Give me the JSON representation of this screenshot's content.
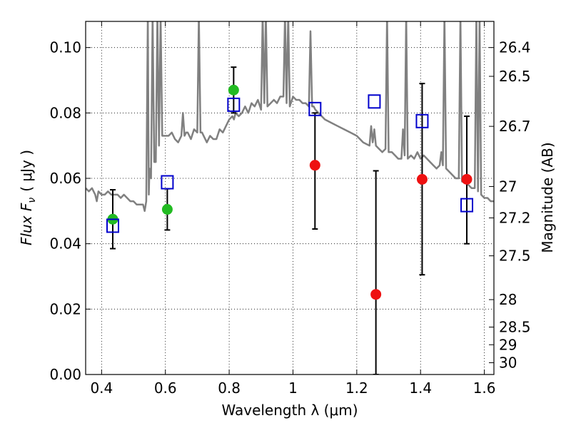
{
  "chart_data": {
    "type": "scatter",
    "xlabel": "Wavelength  λ (μm)",
    "ylabel": "Flux  F",
    "ylabel_sub": "ν",
    "ylabel_unit": "( μJy )",
    "right_ylabel": "Magnitude (AB)",
    "xlim": [
      0.35,
      1.63
    ],
    "ylim": [
      0.0,
      0.108
    ],
    "grid": true,
    "x_ticks": [
      0.4,
      0.6,
      0.8,
      1.0,
      1.2,
      1.4,
      1.6
    ],
    "x_tick_labels": [
      "0.4",
      "0.6",
      "0.8",
      "1",
      "1.2",
      "1.4",
      "1.6"
    ],
    "y_ticks": [
      0.0,
      0.02,
      0.04,
      0.06,
      0.08,
      0.1
    ],
    "y_tick_labels": [
      "0.00",
      "0.02",
      "0.04",
      "0.06",
      "0.08",
      "0.10"
    ],
    "right_ticks": [
      {
        "label": "26.4",
        "flux": 0.1
      },
      {
        "label": "26.5",
        "flux": 0.0912
      },
      {
        "label": "26.7",
        "flux": 0.0759
      },
      {
        "label": "27",
        "flux": 0.0575
      },
      {
        "label": "27.2",
        "flux": 0.0479
      },
      {
        "label": "27.5",
        "flux": 0.0363
      },
      {
        "label": "28",
        "flux": 0.0229
      },
      {
        "label": "28.5",
        "flux": 0.0145
      },
      {
        "label": "29",
        "flux": 0.0091
      },
      {
        "label": "30",
        "flux": 0.0036
      }
    ],
    "colors": {
      "spectrum": "#808080",
      "green": "#22bb22",
      "red": "#ee1111",
      "model": "#0000cc",
      "errorbar": "#000000"
    },
    "detections": [
      {
        "x": 0.435,
        "y": 0.0475,
        "yerr_low": 0.0385,
        "yerr_high": 0.0565,
        "color": "green"
      },
      {
        "x": 0.606,
        "y": 0.0505,
        "yerr_low": 0.0442,
        "yerr_high": 0.0568,
        "color": "green"
      },
      {
        "x": 0.814,
        "y": 0.087,
        "yerr_low": 0.08,
        "yerr_high": 0.094,
        "color": "green"
      },
      {
        "x": 1.069,
        "y": 0.064,
        "yerr_low": 0.0445,
        "yerr_high": 0.08,
        "color": "red"
      },
      {
        "x": 1.26,
        "y": 0.0245,
        "yerr_low": 0.0,
        "yerr_high": 0.0623,
        "color": "red"
      },
      {
        "x": 1.405,
        "y": 0.0597,
        "yerr_low": 0.0305,
        "yerr_high": 0.089,
        "color": "red"
      },
      {
        "x": 1.545,
        "y": 0.0597,
        "yerr_low": 0.04,
        "yerr_high": 0.079,
        "color": "red"
      }
    ],
    "model_photometry": [
      {
        "x": 0.435,
        "y": 0.0455
      },
      {
        "x": 0.606,
        "y": 0.0588
      },
      {
        "x": 0.814,
        "y": 0.0825
      },
      {
        "x": 1.069,
        "y": 0.0812
      },
      {
        "x": 1.255,
        "y": 0.0835
      },
      {
        "x": 1.405,
        "y": 0.0775
      },
      {
        "x": 1.545,
        "y": 0.0518
      }
    ],
    "spectrum": {
      "x": [
        0.35,
        0.36,
        0.37,
        0.38,
        0.385,
        0.39,
        0.4,
        0.41,
        0.42,
        0.43,
        0.44,
        0.45,
        0.46,
        0.47,
        0.48,
        0.49,
        0.5,
        0.51,
        0.52,
        0.53,
        0.535,
        0.54,
        0.545,
        0.548,
        0.55,
        0.555,
        0.56,
        0.565,
        0.57,
        0.575,
        0.58,
        0.585,
        0.59,
        0.6,
        0.61,
        0.62,
        0.63,
        0.64,
        0.65,
        0.655,
        0.66,
        0.665,
        0.67,
        0.68,
        0.69,
        0.7,
        0.705,
        0.71,
        0.715,
        0.72,
        0.73,
        0.74,
        0.75,
        0.76,
        0.77,
        0.78,
        0.79,
        0.8,
        0.81,
        0.815,
        0.82,
        0.83,
        0.84,
        0.85,
        0.86,
        0.87,
        0.88,
        0.89,
        0.9,
        0.905,
        0.91,
        0.915,
        0.92,
        0.93,
        0.94,
        0.95,
        0.96,
        0.97,
        0.975,
        0.98,
        0.985,
        0.99,
        1.0,
        1.01,
        1.02,
        1.03,
        1.04,
        1.05,
        1.055,
        1.06,
        1.065,
        1.07,
        1.08,
        1.09,
        1.1,
        1.12,
        1.14,
        1.16,
        1.18,
        1.2,
        1.22,
        1.24,
        1.245,
        1.25,
        1.255,
        1.26,
        1.27,
        1.28,
        1.29,
        1.295,
        1.3,
        1.31,
        1.32,
        1.33,
        1.34,
        1.345,
        1.35,
        1.355,
        1.36,
        1.37,
        1.38,
        1.39,
        1.4,
        1.41,
        1.42,
        1.43,
        1.44,
        1.45,
        1.46,
        1.465,
        1.47,
        1.475,
        1.48,
        1.49,
        1.5,
        1.51,
        1.52,
        1.525,
        1.53,
        1.54,
        1.55,
        1.56,
        1.57,
        1.575,
        1.58,
        1.585,
        1.59,
        1.6,
        1.61,
        1.62,
        1.63
      ],
      "y": [
        0.057,
        0.056,
        0.057,
        0.055,
        0.053,
        0.056,
        0.055,
        0.055,
        0.056,
        0.055,
        0.055,
        0.055,
        0.054,
        0.055,
        0.054,
        0.053,
        0.053,
        0.052,
        0.052,
        0.052,
        0.05,
        0.053,
        0.11,
        0.055,
        0.063,
        0.06,
        0.11,
        0.065,
        0.065,
        0.11,
        0.07,
        0.11,
        0.073,
        0.073,
        0.073,
        0.074,
        0.072,
        0.071,
        0.073,
        0.08,
        0.073,
        0.074,
        0.074,
        0.072,
        0.075,
        0.074,
        0.11,
        0.074,
        0.074,
        0.073,
        0.071,
        0.073,
        0.072,
        0.072,
        0.075,
        0.074,
        0.076,
        0.078,
        0.079,
        0.078,
        0.08,
        0.079,
        0.08,
        0.082,
        0.08,
        0.083,
        0.082,
        0.084,
        0.081,
        0.11,
        0.083,
        0.11,
        0.082,
        0.083,
        0.084,
        0.083,
        0.085,
        0.085,
        0.11,
        0.083,
        0.11,
        0.082,
        0.085,
        0.084,
        0.084,
        0.083,
        0.083,
        0.082,
        0.105,
        0.082,
        0.082,
        0.081,
        0.08,
        0.079,
        0.078,
        0.077,
        0.076,
        0.075,
        0.074,
        0.073,
        0.071,
        0.07,
        0.076,
        0.071,
        0.075,
        0.07,
        0.069,
        0.068,
        0.069,
        0.11,
        0.068,
        0.068,
        0.067,
        0.066,
        0.066,
        0.075,
        0.067,
        0.11,
        0.066,
        0.067,
        0.066,
        0.068,
        0.066,
        0.067,
        0.066,
        0.065,
        0.064,
        0.063,
        0.064,
        0.068,
        0.064,
        0.11,
        0.063,
        0.062,
        0.061,
        0.06,
        0.06,
        0.11,
        0.059,
        0.059,
        0.058,
        0.057,
        0.057,
        0.11,
        0.056,
        0.11,
        0.055,
        0.054,
        0.054,
        0.053,
        0.053
      ]
    }
  }
}
